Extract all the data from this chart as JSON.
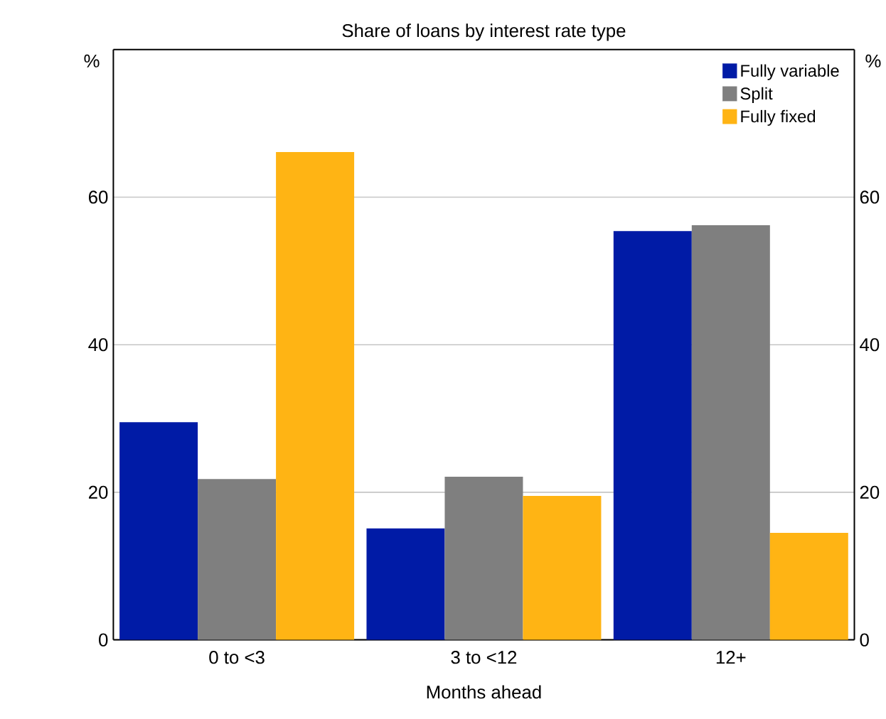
{
  "chart_data": {
    "type": "bar",
    "subtitle": "Share of loans by interest rate type",
    "xlabel": "Months ahead",
    "ylabel": "%",
    "y2label": "%",
    "categories": [
      "0 to <3",
      "3 to <12",
      "12+"
    ],
    "series": [
      {
        "name": "Fully variable",
        "color": "#001ba6",
        "values": [
          29.5,
          15.1,
          55.4
        ]
      },
      {
        "name": "Split",
        "color": "#7f7f7f",
        "values": [
          21.8,
          22.1,
          56.2
        ]
      },
      {
        "name": "Fully fixed",
        "color": "#ffb414",
        "values": [
          66.1,
          19.5,
          14.5
        ]
      }
    ],
    "ylim": [
      0,
      80
    ],
    "yticks": [
      0,
      20,
      40,
      60
    ],
    "y2lim": [
      0,
      80
    ],
    "y2ticks": [
      0,
      20,
      40,
      60
    ],
    "grid": "y",
    "legend": "top right"
  }
}
